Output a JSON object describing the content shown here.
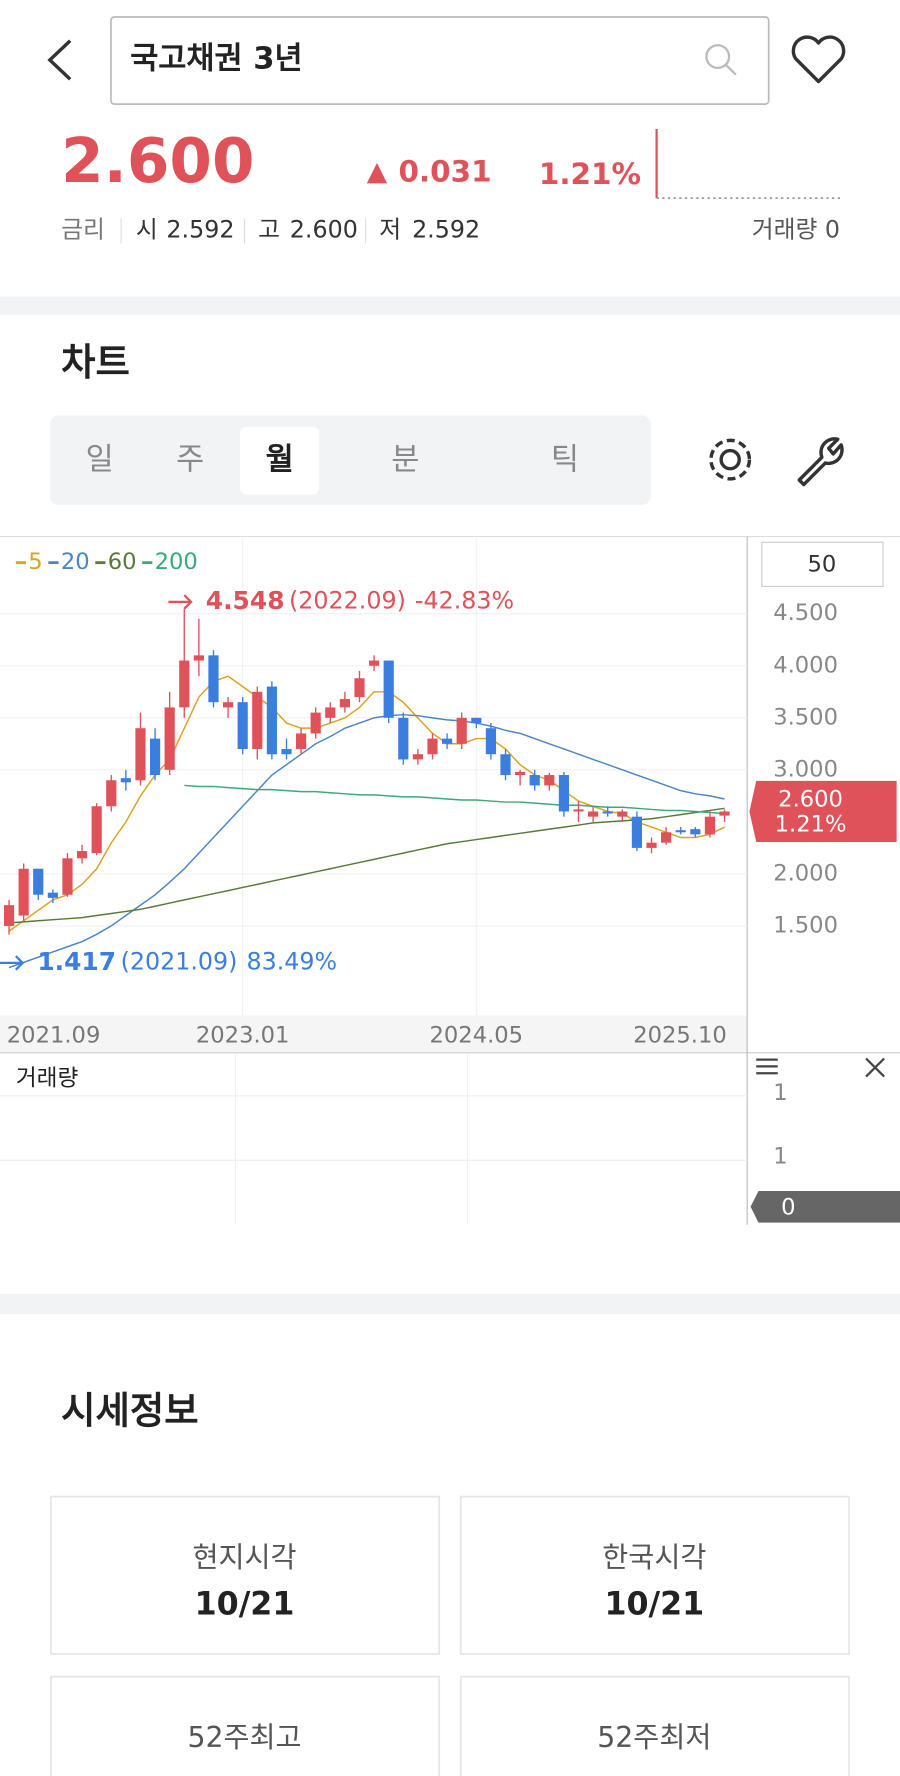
{
  "header": {
    "search": "국고채권 3년"
  },
  "quote": {
    "price": "2.600",
    "change": "0.031",
    "change_pct": "1.21%",
    "rate_label": "금리",
    "open_label": "시",
    "open": "2.592",
    "high_label": "고",
    "high": "2.600",
    "low_label": "저",
    "low": "2.592",
    "volume_label": "거래량",
    "volume": "0"
  },
  "chart_section": {
    "title": "차트",
    "tabs": [
      "일",
      "주",
      "월",
      "분",
      "틱"
    ]
  },
  "chart": {
    "type": "candlestick",
    "x": [
      "2021.09",
      null,
      null,
      null,
      null,
      null,
      null,
      null,
      null,
      null,
      null,
      null,
      null,
      null,
      null,
      null,
      "2023.01",
      null,
      null,
      null,
      null,
      null,
      null,
      null,
      null,
      null,
      null,
      null,
      null,
      null,
      null,
      null,
      "2024.05",
      null,
      null,
      null,
      null,
      null,
      null,
      null,
      null,
      null,
      null,
      null,
      null,
      null,
      null,
      null,
      null,
      "2025.10"
    ],
    "open": [
      1.5,
      1.6,
      2.05,
      1.82,
      1.8,
      2.15,
      2.2,
      2.65,
      2.92,
      2.9,
      3.3,
      3.0,
      3.6,
      4.05,
      4.1,
      3.6,
      3.65,
      3.2,
      3.8,
      3.2,
      3.2,
      3.35,
      3.5,
      3.6,
      3.7,
      4.0,
      4.05,
      3.5,
      3.1,
      3.15,
      3.3,
      3.25,
      3.5,
      3.4,
      3.15,
      2.95,
      2.95,
      2.85,
      2.95,
      2.6,
      2.55,
      2.6,
      2.55,
      2.55,
      2.25,
      2.3,
      2.42,
      2.43,
      2.38,
      2.56
    ],
    "high": [
      1.75,
      2.1,
      2.05,
      1.85,
      2.2,
      2.28,
      2.68,
      2.95,
      3.0,
      3.55,
      3.4,
      3.75,
      4.548,
      4.45,
      4.15,
      3.7,
      3.7,
      3.8,
      3.85,
      3.3,
      3.4,
      3.6,
      3.65,
      3.75,
      3.95,
      4.1,
      4.05,
      3.55,
      3.2,
      3.35,
      3.35,
      3.55,
      3.5,
      3.45,
      3.2,
      3.0,
      3.0,
      2.97,
      2.98,
      2.7,
      2.65,
      2.65,
      2.62,
      2.6,
      2.35,
      2.45,
      2.45,
      2.45,
      2.6,
      2.62
    ],
    "low": [
      1.417,
      1.55,
      1.75,
      1.72,
      1.78,
      2.1,
      2.18,
      2.6,
      2.8,
      2.85,
      2.9,
      2.95,
      3.5,
      3.9,
      3.6,
      3.5,
      3.15,
      3.1,
      3.1,
      3.1,
      3.15,
      3.3,
      3.45,
      3.55,
      3.65,
      3.95,
      3.45,
      3.05,
      3.05,
      3.1,
      3.2,
      3.2,
      3.4,
      3.1,
      2.9,
      2.85,
      2.8,
      2.8,
      2.55,
      2.5,
      2.5,
      2.55,
      2.5,
      2.22,
      2.2,
      2.28,
      2.38,
      2.35,
      2.35,
      2.5
    ],
    "close": [
      1.7,
      2.05,
      1.8,
      1.77,
      2.15,
      2.22,
      2.65,
      2.9,
      2.88,
      3.4,
      2.95,
      3.6,
      4.05,
      4.1,
      3.65,
      3.65,
      3.2,
      3.75,
      3.15,
      3.15,
      3.35,
      3.55,
      3.6,
      3.68,
      3.88,
      4.05,
      3.5,
      3.1,
      3.15,
      3.3,
      3.25,
      3.5,
      3.45,
      3.15,
      2.95,
      2.98,
      2.85,
      2.95,
      2.6,
      2.62,
      2.6,
      2.58,
      2.6,
      2.25,
      2.3,
      2.4,
      2.4,
      2.38,
      2.55,
      2.6
    ],
    "up_color": "#e0525a",
    "down_color": "#3c7de0",
    "ylim": [
      0.64,
      5.23
    ],
    "yticks": [
      {
        "value": 1.5,
        "label": "1.500"
      },
      {
        "value": 2,
        "label": "2.000"
      },
      {
        "value": 3,
        "label": "3.000"
      },
      {
        "value": 3.5,
        "label": "3.500"
      },
      {
        "value": 4,
        "label": "4.000"
      },
      {
        "value": 4.5,
        "label": "4.500"
      }
    ],
    "series": [
      {
        "name": "5",
        "color": "#e0a020",
        "values": [
          1.45,
          1.55,
          1.65,
          1.75,
          1.8,
          1.9,
          2.05,
          2.3,
          2.5,
          2.75,
          2.95,
          3.1,
          3.4,
          3.7,
          3.85,
          3.9,
          3.8,
          3.7,
          3.6,
          3.45,
          3.4,
          3.4,
          3.45,
          3.5,
          3.6,
          3.75,
          3.75,
          3.65,
          3.5,
          3.35,
          3.25,
          3.25,
          3.3,
          3.3,
          3.2,
          3.05,
          2.95,
          2.9,
          2.8,
          2.7,
          2.65,
          2.6,
          2.58,
          2.5,
          2.45,
          2.4,
          2.35,
          2.35,
          2.38,
          2.45
        ]
      },
      {
        "name": "20",
        "color": "#4a86c8",
        "values": [
          1.1,
          1.15,
          1.2,
          1.25,
          1.3,
          1.35,
          1.42,
          1.5,
          1.6,
          1.7,
          1.8,
          1.92,
          2.05,
          2.2,
          2.35,
          2.5,
          2.65,
          2.8,
          2.95,
          3.05,
          3.15,
          3.25,
          3.32,
          3.4,
          3.45,
          3.5,
          3.52,
          3.53,
          3.52,
          3.5,
          3.48,
          3.47,
          3.45,
          3.42,
          3.38,
          3.35,
          3.3,
          3.25,
          3.2,
          3.15,
          3.1,
          3.05,
          3.0,
          2.95,
          2.9,
          2.85,
          2.8,
          2.77,
          2.75,
          2.72
        ]
      },
      {
        "name": "60",
        "color": "#5a7a3a",
        "values": [
          1.53,
          1.54,
          1.55,
          1.56,
          1.57,
          1.58,
          1.6,
          1.62,
          1.64,
          1.66,
          1.69,
          1.72,
          1.75,
          1.78,
          1.81,
          1.84,
          1.87,
          1.9,
          1.93,
          1.96,
          1.99,
          2.02,
          2.05,
          2.08,
          2.11,
          2.14,
          2.17,
          2.2,
          2.23,
          2.26,
          2.29,
          2.31,
          2.33,
          2.35,
          2.37,
          2.39,
          2.41,
          2.43,
          2.45,
          2.47,
          2.49,
          2.5,
          2.51,
          2.52,
          2.53,
          2.55,
          2.57,
          2.59,
          2.61,
          2.63
        ]
      },
      {
        "name": "200",
        "color": "#3aaa7a",
        "values": [
          null,
          null,
          null,
          null,
          null,
          null,
          null,
          null,
          null,
          null,
          null,
          null,
          2.85,
          2.84,
          2.84,
          2.83,
          2.82,
          2.81,
          2.81,
          2.8,
          2.79,
          2.79,
          2.78,
          2.77,
          2.76,
          2.76,
          2.75,
          2.74,
          2.74,
          2.73,
          2.72,
          2.71,
          2.71,
          2.7,
          2.69,
          2.69,
          2.68,
          2.67,
          2.66,
          2.66,
          2.65,
          2.64,
          2.64,
          2.63,
          2.62,
          2.61,
          2.61,
          2.6,
          2.59,
          2.58
        ]
      }
    ],
    "high_note": {
      "date": "(2022.09)",
      "change": "-42.83%"
    },
    "low_note": {
      "date": "(2021.09)",
      "change": "83.49%"
    },
    "period_count": "50",
    "volume": {
      "title": "거래량",
      "labels": [
        "1",
        "1",
        "0"
      ]
    }
  },
  "market_info": {
    "title": "시세정보",
    "cards": [
      {
        "label": "현지시각",
        "value": "10/21"
      },
      {
        "label": "한국시각",
        "value": "10/21"
      },
      {
        "label": "52주최고"
      },
      {
        "label": "52주최저"
      }
    ]
  }
}
